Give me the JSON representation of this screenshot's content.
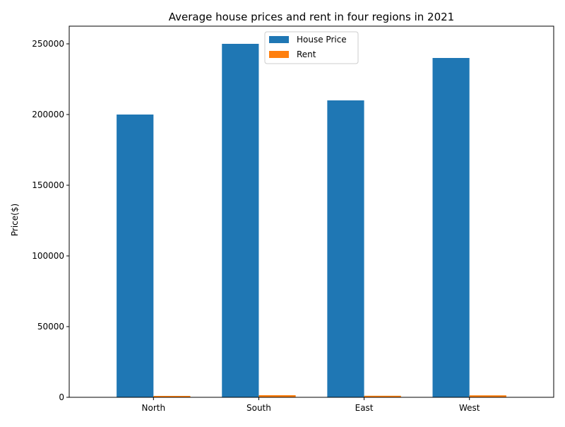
{
  "chart_data": {
    "type": "bar",
    "title": "Average house prices and rent in four regions in 2021",
    "xlabel": "",
    "ylabel": "Price($)",
    "categories": [
      "North",
      "South",
      "East",
      "West"
    ],
    "series": [
      {
        "name": "House Price",
        "values": [
          200000,
          250000,
          210000,
          240000
        ],
        "color": "#1f77b4"
      },
      {
        "name": "Rent",
        "values": [
          1000,
          1500,
          1100,
          1400
        ],
        "color": "#ff7f0e"
      }
    ],
    "ylim": [
      0,
      262500
    ],
    "yticks": [
      0,
      50000,
      100000,
      150000,
      200000,
      250000
    ],
    "grid": false,
    "legend_position": "top-center"
  }
}
